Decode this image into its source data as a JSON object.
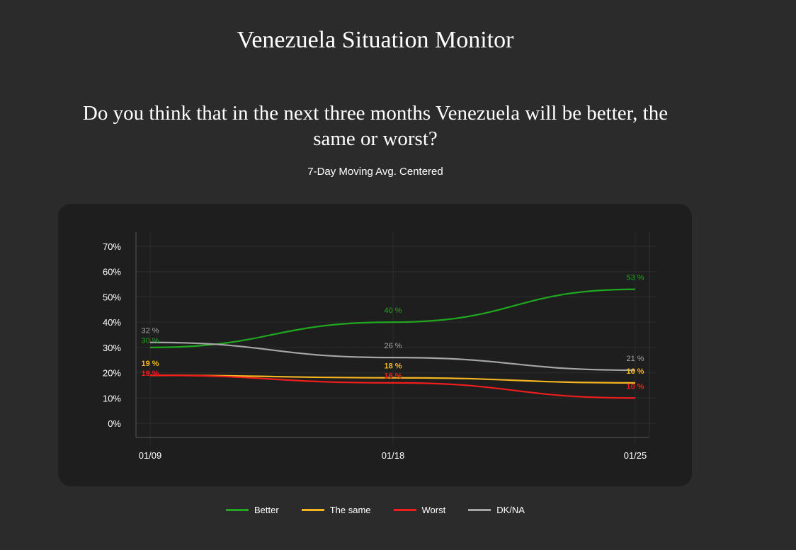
{
  "title": "Venezuela Situation Monitor",
  "question": "Do you think that in the next three months Venezuela will be better, the same or worst?",
  "subtitle": "7-Day Moving Avg. Centered",
  "chart_data": {
    "type": "line",
    "x": [
      "01/09",
      "01/18",
      "01/25"
    ],
    "ylim": [
      0,
      70
    ],
    "yticks": [
      "0%",
      "10%",
      "20%",
      "30%",
      "40%",
      "50%",
      "60%",
      "70%"
    ],
    "grid": true,
    "legend": "bottom",
    "series": [
      {
        "name": "Better",
        "color": "#1fa81f",
        "values": [
          30,
          40,
          53
        ]
      },
      {
        "name": "The same",
        "color": "#f5b520",
        "values": [
          19,
          18,
          16
        ]
      },
      {
        "name": "Worst",
        "color": "#f01d1d",
        "values": [
          19,
          16,
          10
        ]
      },
      {
        "name": "DK/NA",
        "color": "#a6a6a6",
        "values": [
          32,
          26,
          21
        ]
      }
    ],
    "label_suffix": " %"
  }
}
